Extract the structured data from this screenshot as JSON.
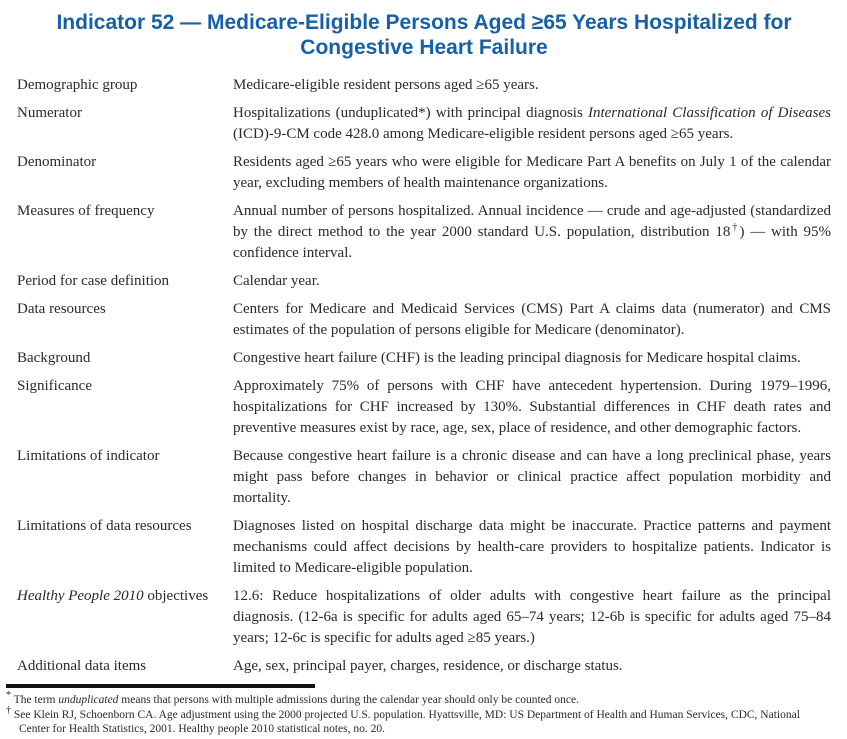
{
  "title": {
    "line1": "Indicator 52 — Medicare-Eligible Persons Aged ≥65 Years Hospitalized for",
    "line2": "Congestive Heart Failure"
  },
  "colors": {
    "title_blue": "#1560a8",
    "body_text": "#2a2a2a",
    "rule_black": "#111111"
  },
  "definition_table": {
    "rows": [
      {
        "label": [
          {
            "t": "Demographic group"
          }
        ],
        "value": [
          {
            "t": "Medicare-eligible resident persons aged ≥65 years."
          }
        ]
      },
      {
        "label": [
          {
            "t": "Numerator"
          }
        ],
        "value": [
          {
            "t": "Hospitalizations (unduplicated*) with principal diagnosis "
          },
          {
            "t": "International Classification of Diseases",
            "style": "italic"
          },
          {
            "t": " (ICD)-9-CM code 428.0 among Medicare-eligible resident persons aged ≥65 years."
          }
        ]
      },
      {
        "label": [
          {
            "t": "Denominator"
          }
        ],
        "value": [
          {
            "t": "Residents aged ≥65 years who were eligible for Medicare Part A benefits on July 1 of the calendar year, excluding members of health maintenance organizations."
          }
        ]
      },
      {
        "label": [
          {
            "t": "Measures of frequency"
          }
        ],
        "value": [
          {
            "t": "Annual number of persons hospitalized. Annual incidence — crude and age-adjusted (standardized by the direct method to the year 2000 standard U.S. population, distribution 18"
          },
          {
            "t": "†",
            "style": "sup"
          },
          {
            "t": ") — with 95% confidence interval."
          }
        ]
      },
      {
        "label": [
          {
            "t": "Period for case definition"
          }
        ],
        "value": [
          {
            "t": "Calendar year."
          }
        ]
      },
      {
        "label": [
          {
            "t": "Data resources"
          }
        ],
        "value": [
          {
            "t": "Centers for Medicare and Medicaid Services (CMS) Part A claims data (numerator) and CMS estimates of the population of persons eligible for Medicare (denominator)."
          }
        ]
      },
      {
        "label": [
          {
            "t": "Background"
          }
        ],
        "value": [
          {
            "t": "Congestive heart failure (CHF) is the leading principal diagnosis for Medicare hospital claims."
          }
        ]
      },
      {
        "label": [
          {
            "t": "Significance"
          }
        ],
        "value": [
          {
            "t": "Approximately 75% of persons with CHF have antecedent hypertension. During 1979–1996, hospitalizations for CHF increased by 130%. Substantial differences in CHF death rates and preventive measures exist by race, age, sex, place of residence, and other demographic factors."
          }
        ]
      },
      {
        "label": [
          {
            "t": "Limitations of indicator"
          }
        ],
        "value": [
          {
            "t": "Because congestive heart failure is a chronic disease and can have a long preclinical phase, years might pass before changes in behavior or clinical practice affect population morbidity and mortality."
          }
        ]
      },
      {
        "label": [
          {
            "t": "Limitations of data resources"
          }
        ],
        "value": [
          {
            "t": "Diagnoses listed on hospital discharge data might be inaccurate. Practice patterns and payment mechanisms could affect decisions by health-care providers to hospitalize patients. Indicator is limited to Medicare-eligible population."
          }
        ]
      },
      {
        "label": [
          {
            "t": "Healthy People 2010",
            "style": "italic"
          },
          {
            "t": " objectives"
          }
        ],
        "value": [
          {
            "t": "12.6: Reduce hospitalizations of older adults with congestive heart failure as the principal diagnosis. (12-6a is specific for adults aged 65–74 years; 12-6b is specific for adults aged 75–84 years; 12-6c is specific for adults aged ≥85 years.)"
          }
        ]
      },
      {
        "label": [
          {
            "t": "Additional data items"
          }
        ],
        "value": [
          {
            "t": "Age, sex, principal payer, charges, residence, or discharge status."
          }
        ]
      }
    ]
  },
  "footnotes": [
    {
      "marker": "*",
      "segments": [
        {
          "t": " The term "
        },
        {
          "t": "unduplicated",
          "style": "italic"
        },
        {
          "t": " means that persons with multiple admissions during the calendar year should only be counted once."
        }
      ]
    },
    {
      "marker": "†",
      "segments": [
        {
          "t": " See Klein RJ, Schoenborn CA. Age adjustment using the 2000 projected U.S. population. Hyattsville, MD: US Department of Health and Human Services, CDC, National Center for Health Statistics, 2001. Healthy people 2010 statistical notes, no. 20."
        }
      ]
    }
  ]
}
